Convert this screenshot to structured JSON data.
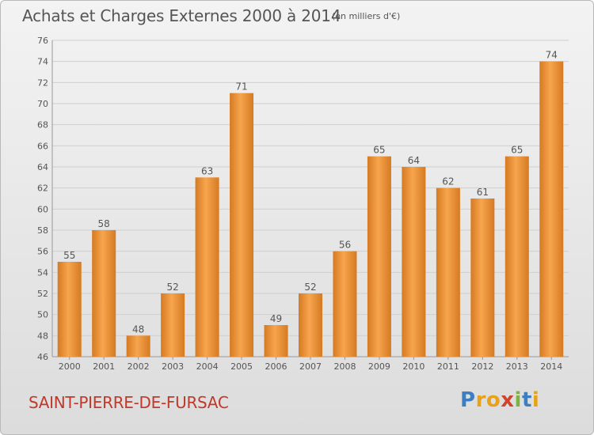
{
  "header": {
    "title": "Achats et Charges Externes 2000 à 2014",
    "subtitle": "(en milliers d'€)"
  },
  "footer": {
    "commune": "SAINT-PIERRE-DE-FURSAC",
    "logo": {
      "letters": [
        "P",
        "r",
        "o",
        "x",
        "i",
        "t",
        "i"
      ],
      "colors": [
        "#3b7ec2",
        "#e8a21a",
        "#e8a21a",
        "#d2432b",
        "#7cb342",
        "#3b7ec2",
        "#e8a21a"
      ]
    }
  },
  "colors": {
    "bar_light": "#f7a54e",
    "bar_dark": "#d57a22",
    "grid": "#cfcfcf",
    "axis_text": "#555555"
  },
  "chart_data": {
    "type": "bar",
    "categories": [
      "2000",
      "2001",
      "2002",
      "2003",
      "2004",
      "2005",
      "2006",
      "2007",
      "2008",
      "2009",
      "2010",
      "2011",
      "2012",
      "2013",
      "2014"
    ],
    "values": [
      55,
      58,
      48,
      52,
      63,
      71,
      49,
      52,
      56,
      65,
      64,
      62,
      61,
      65,
      74
    ],
    "ylim": [
      46,
      76
    ],
    "yticks": [
      46,
      48,
      50,
      52,
      54,
      56,
      58,
      60,
      62,
      64,
      66,
      68,
      70,
      72,
      74,
      76
    ],
    "grid": true,
    "data_labels": true
  }
}
